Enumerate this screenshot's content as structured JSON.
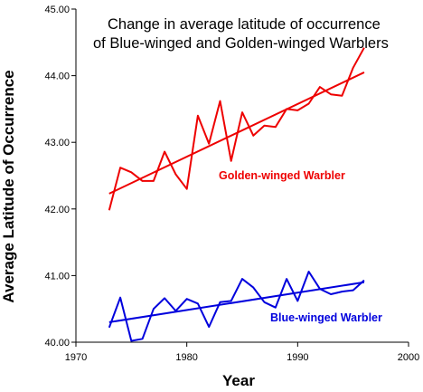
{
  "chart_data": {
    "type": "line",
    "title_lines": [
      "Change in average latitude of occurrence",
      "of Blue-winged and Golden-winged Warblers"
    ],
    "xlabel": "Year",
    "ylabel": "Average Latitude of Occurrence",
    "xlim": [
      1970,
      2000
    ],
    "ylim": [
      40.0,
      45.0
    ],
    "x_ticks": [
      1970,
      1980,
      1990,
      2000
    ],
    "x_tick_labels": [
      "1970",
      "1980",
      "1990",
      "2000"
    ],
    "y_ticks": [
      40,
      41,
      42,
      43,
      44,
      45
    ],
    "y_tick_labels": [
      "40.00",
      "41.00",
      "42.00",
      "43.00",
      "44.00",
      "45.00"
    ],
    "grid": false,
    "series": [
      {
        "name": "Golden-winged Warbler",
        "color": "#ee0000",
        "x": [
          1973,
          1974,
          1975,
          1976,
          1977,
          1978,
          1979,
          1980,
          1981,
          1982,
          1983,
          1984,
          1985,
          1986,
          1987,
          1988,
          1989,
          1990,
          1991,
          1992,
          1993,
          1994,
          1995,
          1996
        ],
        "values": [
          41.98,
          42.62,
          42.55,
          42.42,
          42.42,
          42.86,
          42.52,
          42.3,
          43.4,
          42.98,
          43.62,
          42.72,
          43.45,
          43.1,
          43.25,
          43.23,
          43.5,
          43.48,
          43.58,
          43.83,
          43.72,
          43.7,
          44.12,
          44.42
        ],
        "trend": {
          "x": [
            1973,
            1996
          ],
          "y": [
            42.23,
            44.05
          ]
        }
      },
      {
        "name": "Blue-winged Warbler",
        "color": "#0000dd",
        "x": [
          1973,
          1974,
          1975,
          1976,
          1977,
          1978,
          1979,
          1980,
          1981,
          1982,
          1983,
          1984,
          1985,
          1986,
          1987,
          1988,
          1989,
          1990,
          1991,
          1992,
          1993,
          1994,
          1995,
          1996
        ],
        "values": [
          40.22,
          40.67,
          40.02,
          40.05,
          40.5,
          40.66,
          40.47,
          40.65,
          40.58,
          40.23,
          40.6,
          40.62,
          40.95,
          40.82,
          40.6,
          40.52,
          40.95,
          40.62,
          41.06,
          40.8,
          40.72,
          40.76,
          40.78,
          40.93
        ],
        "trend": {
          "x": [
            1973,
            1996
          ],
          "y": [
            40.3,
            40.9
          ]
        }
      }
    ]
  }
}
